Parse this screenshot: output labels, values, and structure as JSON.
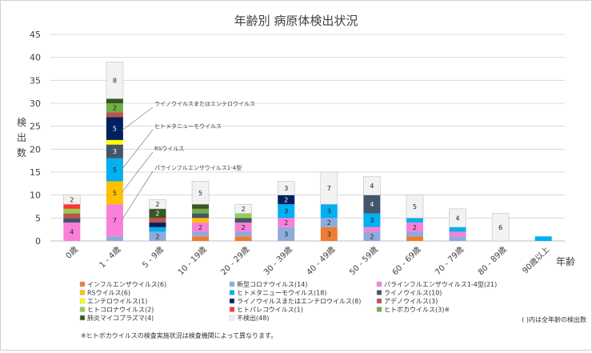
{
  "chart_data": {
    "type": "bar",
    "stacked": true,
    "title": "年齢別 病原体検出状況",
    "xlabel": "年齢",
    "ylabel": "検出数",
    "ylim": [
      0,
      45
    ],
    "yticks": [
      0,
      5,
      10,
      15,
      20,
      25,
      30,
      35,
      40,
      45
    ],
    "grid": true,
    "legend_position": "bottom",
    "categories": [
      "0歳",
      "1 - 4歳",
      "5 - 9歳",
      "10 - 19歳",
      "20 - 29歳",
      "30 - 39歳",
      "40 - 49歳",
      "50 - 59歳",
      "60 - 69歳",
      "70 - 79歳",
      "80 - 89歳",
      "90歳以上"
    ],
    "series": [
      {
        "name": "インフルエンザウイルス(6)",
        "color": "#ED7D31",
        "values": [
          0,
          0,
          0,
          1,
          1,
          0,
          3,
          0,
          1,
          0,
          0,
          0
        ]
      },
      {
        "name": "新型コロナウイルス(14)",
        "color": "#8FAADC",
        "values": [
          0,
          1,
          2,
          1,
          1,
          3,
          2,
          2,
          1,
          1,
          0,
          0
        ]
      },
      {
        "name": "パラインフルエンザウイルス1-4型(21)",
        "color": "#F97FD8",
        "values": [
          4,
          7,
          0,
          2,
          2,
          2,
          0,
          1,
          2,
          1,
          0,
          0
        ]
      },
      {
        "name": "RSウイルス(6)",
        "color": "#FFC000",
        "values": [
          0,
          5,
          0,
          1,
          0,
          0,
          0,
          0,
          0,
          0,
          0,
          0
        ]
      },
      {
        "name": "ヒトメタニューモウイルス(18)",
        "color": "#00B0F0",
        "values": [
          0,
          5,
          1,
          0,
          0,
          3,
          3,
          3,
          1,
          1,
          0,
          1
        ]
      },
      {
        "name": "ライノウイルス(10)",
        "color": "#44546A",
        "values": [
          1,
          3,
          0,
          1,
          1,
          0,
          0,
          4,
          0,
          0,
          0,
          0
        ]
      },
      {
        "name": "エンテロウイルス(1)",
        "color": "#FFFF00",
        "values": [
          0,
          1,
          0,
          0,
          0,
          0,
          0,
          0,
          0,
          0,
          0,
          0
        ]
      },
      {
        "name": "ライノウイルスまたはエンテロウイルス(8)",
        "color": "#002060",
        "values": [
          0,
          5,
          1,
          0,
          0,
          2,
          0,
          0,
          0,
          0,
          0,
          0
        ]
      },
      {
        "name": "アデノウイルス(3)",
        "color": "#C0504D",
        "values": [
          1,
          1,
          1,
          0,
          0,
          0,
          0,
          0,
          0,
          0,
          0,
          0
        ]
      },
      {
        "name": "ヒトコロナウイルス(2)",
        "color": "#92D050",
        "values": [
          1,
          0,
          0,
          0,
          1,
          0,
          0,
          0,
          0,
          0,
          0,
          0
        ]
      },
      {
        "name": "ヒトパレコウイルス(1)",
        "color": "#FF3333",
        "values": [
          1,
          0,
          0,
          0,
          0,
          0,
          0,
          0,
          0,
          0,
          0,
          0
        ]
      },
      {
        "name": "ヒトボカウイルス(3)※",
        "color": "#70AD47",
        "values": [
          0,
          2,
          0,
          1,
          0,
          0,
          0,
          0,
          0,
          0,
          0,
          0
        ]
      },
      {
        "name": "肺炎マイコプラズマ(4)",
        "color": "#375623",
        "values": [
          0,
          1,
          2,
          1,
          0,
          0,
          0,
          0,
          0,
          0,
          0,
          0
        ]
      },
      {
        "name": "不検出(48)",
        "color": "#F2F2F2",
        "values": [
          2,
          8,
          2,
          5,
          2,
          3,
          7,
          4,
          5,
          4,
          6,
          0
        ]
      }
    ],
    "data_labels": [
      {
        "category": "0歳",
        "series": "パラインフルエンザウイルス1-4型(21)",
        "text": "4"
      },
      {
        "category": "0歳",
        "series": "不検出(48)",
        "text": "2"
      },
      {
        "category": "1 - 4歳",
        "series": "パラインフルエンザウイルス1-4型(21)",
        "text": "7"
      },
      {
        "category": "1 - 4歳",
        "series": "RSウイルス(6)",
        "text": "5"
      },
      {
        "category": "1 - 4歳",
        "series": "ヒトメタニューモウイルス(18)",
        "text": "5"
      },
      {
        "category": "1 - 4歳",
        "series": "ライノウイルス(10)",
        "text": "3"
      },
      {
        "category": "1 - 4歳",
        "series": "ライノウイルスまたはエンテロウイルス(8)",
        "text": "5"
      },
      {
        "category": "1 - 4歳",
        "series": "ヒトボカウイルス(3)※",
        "text": "2"
      },
      {
        "category": "1 - 4歳",
        "series": "不検出(48)",
        "text": "8"
      },
      {
        "category": "5 - 9歳",
        "series": "新型コロナウイルス(14)",
        "text": "2"
      },
      {
        "category": "5 - 9歳",
        "series": "肺炎マイコプラズマ(4)",
        "text": "2"
      },
      {
        "category": "5 - 9歳",
        "series": "不検出(48)",
        "text": "2"
      },
      {
        "category": "10 - 19歳",
        "series": "パラインフルエンザウイルス1-4型(21)",
        "text": "2"
      },
      {
        "category": "10 - 19歳",
        "series": "不検出(48)",
        "text": "5"
      },
      {
        "category": "20 - 29歳",
        "series": "パラインフルエンザウイルス1-4型(21)",
        "text": "2"
      },
      {
        "category": "20 - 29歳",
        "series": "不検出(48)",
        "text": "2"
      },
      {
        "category": "30 - 39歳",
        "series": "新型コロナウイルス(14)",
        "text": "3"
      },
      {
        "category": "30 - 39歳",
        "series": "パラインフルエンザウイルス1-4型(21)",
        "text": "2"
      },
      {
        "category": "30 - 39歳",
        "series": "ヒトメタニューモウイルス(18)",
        "text": "3"
      },
      {
        "category": "30 - 39歳",
        "series": "ライノウイルスまたはエンテロウイルス(8)",
        "text": "2"
      },
      {
        "category": "30 - 39歳",
        "series": "不検出(48)",
        "text": "3"
      },
      {
        "category": "40 - 49歳",
        "series": "インフルエンザウイルス(6)",
        "text": "3"
      },
      {
        "category": "40 - 49歳",
        "series": "新型コロナウイルス(14)",
        "text": "2"
      },
      {
        "category": "40 - 49歳",
        "series": "ヒトメタニューモウイルス(18)",
        "text": "3"
      },
      {
        "category": "40 - 49歳",
        "series": "不検出(48)",
        "text": "7"
      },
      {
        "category": "50 - 59歳",
        "series": "新型コロナウイルス(14)",
        "text": "2"
      },
      {
        "category": "50 - 59歳",
        "series": "ヒトメタニューモウイルス(18)",
        "text": "3"
      },
      {
        "category": "50 - 59歳",
        "series": "ライノウイルス(10)",
        "text": "4"
      },
      {
        "category": "50 - 59歳",
        "series": "不検出(48)",
        "text": "4"
      },
      {
        "category": "60 - 69歳",
        "series": "パラインフルエンザウイルス1-4型(21)",
        "text": "2"
      },
      {
        "category": "60 - 69歳",
        "series": "不検出(48)",
        "text": "5"
      },
      {
        "category": "70 - 79歳",
        "series": "不検出(48)",
        "text": "4"
      },
      {
        "category": "80 - 89歳",
        "series": "不検出(48)",
        "text": "6"
      }
    ],
    "annotations": [
      {
        "text": "ライノウイルスまたはエンテロウイルス",
        "category": "1 - 4歳",
        "y": 24
      },
      {
        "text": "ヒトメタニューモウイルス",
        "category": "1 - 4歳",
        "y": 15.5
      },
      {
        "text": "RSウイルス",
        "category": "1 - 4歳",
        "y": 10.5
      },
      {
        "text": "パラインフルエンザウイルス1-4型",
        "category": "1 - 4歳",
        "y": 4.5
      }
    ],
    "legend_note": "( )内は全年齢の検出数",
    "footnote": "※ヒトボカウイルスの検査実施状況は検査機関によって異なります。"
  }
}
